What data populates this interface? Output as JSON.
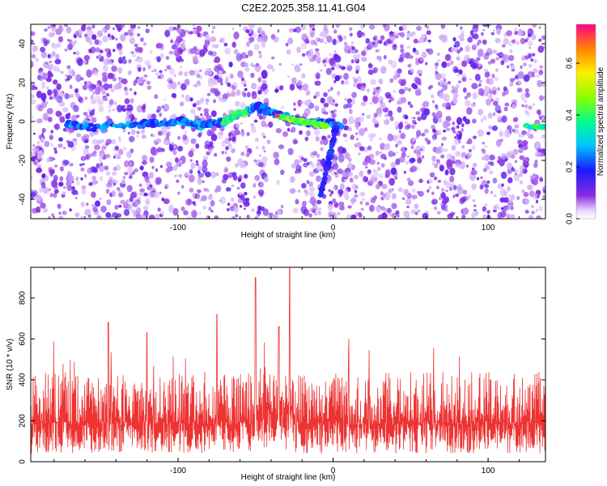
{
  "title": "C2E2.2025.358.11.41.G04",
  "colors": {
    "snr_line": "#ee3333",
    "spectrogram_noise": "#8a2be2",
    "axes": "#000000"
  },
  "chart_data": [
    {
      "type": "heatmap",
      "xlabel": "Height of straight line (km)",
      "ylabel": "Frequency (Hz)",
      "xlim": [
        -195,
        137
      ],
      "ylim": [
        -50,
        50
      ],
      "xticks": [
        -100,
        0,
        100
      ],
      "yticks": [
        -40,
        -20,
        0,
        20,
        40
      ],
      "colorbar": {
        "label": "Normalized spectral amplitude",
        "range": [
          0,
          0.75
        ],
        "ticks": [
          0.0,
          0.2,
          0.4,
          0.6
        ],
        "colormap": "rainbow (violet to red)"
      },
      "features": [
        {
          "desc": "main horizontal trail",
          "points": [
            [
              -172,
              -1.5
            ],
            [
              -155,
              -3
            ],
            [
              -120,
              -1
            ],
            [
              -100,
              0
            ],
            [
              -85,
              -2
            ],
            [
              -70,
              0
            ],
            [
              -60,
              4
            ],
            [
              -50,
              8
            ],
            [
              -35,
              3
            ],
            [
              -20,
              0
            ],
            [
              -5,
              -1
            ],
            [
              5,
              -2
            ]
          ]
        },
        {
          "desc": "bright head echo",
          "points": [
            [
              -36,
              3
            ],
            [
              -20,
              0
            ],
            [
              -5,
              -2
            ]
          ]
        },
        {
          "desc": "descending streak",
          "points": [
            [
              2,
              -3
            ],
            [
              -8,
              -38
            ]
          ]
        },
        {
          "desc": "right edge echo",
          "points": [
            [
              124,
              -2.5
            ],
            [
              136,
              -2.5
            ]
          ]
        }
      ]
    },
    {
      "type": "line",
      "xlabel": "Height of straight line (km)",
      "ylabel": "SNR (10 * v/v)",
      "xlim": [
        -195,
        137
      ],
      "ylim": [
        0,
        950
      ],
      "xticks": [
        -100,
        0,
        100
      ],
      "yticks": [
        0,
        200,
        400,
        600,
        800
      ],
      "series": [
        {
          "baseline": 200,
          "typical_range": [
            50,
            450
          ],
          "peaks": [
            [
              -145,
              680
            ],
            [
              -120,
              630
            ],
            [
              -75,
              720
            ],
            [
              -50,
              900
            ],
            [
              -35,
              660
            ],
            [
              -28,
              950
            ],
            [
              10,
              600
            ]
          ]
        }
      ]
    }
  ]
}
